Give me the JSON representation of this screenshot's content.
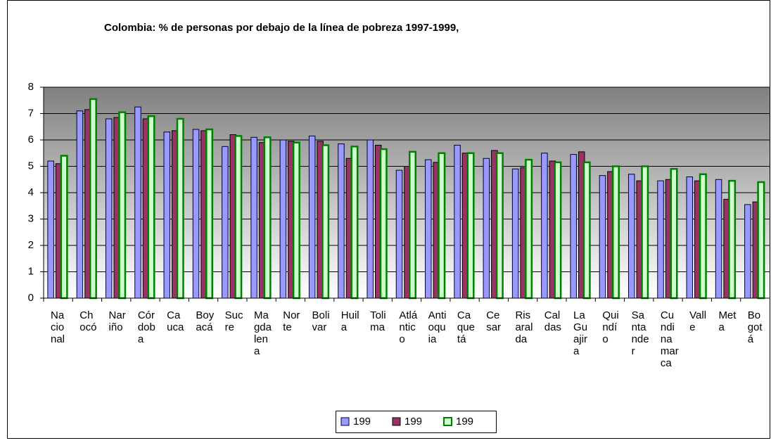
{
  "chart_data": {
    "type": "bar",
    "title": "Colombia: % de personas por debajo de la línea de pobreza 1997-1999,",
    "categories": [
      "Nacional",
      "Chocó",
      "Nariño",
      "Córdoba",
      "Cauca",
      "Boyacá",
      "Sucre",
      "Magdalena",
      "Norte",
      "Bolivar",
      "Huila",
      "Tolima",
      "Atlántico",
      "Antioquia",
      "Caquetá",
      "Cesar",
      "Risaralda",
      "Caldas",
      "La Guajira",
      "Quindío",
      "Santander",
      "Cundinamarca",
      "Valle",
      "Meta",
      "Bogotá"
    ],
    "series": [
      {
        "name": "199",
        "color": "#9999ff",
        "values": [
          5.2,
          7.1,
          6.8,
          7.25,
          6.3,
          6.4,
          5.75,
          6.1,
          6.0,
          6.15,
          5.85,
          6.0,
          4.85,
          5.25,
          5.8,
          5.3,
          4.9,
          5.5,
          5.45,
          4.65,
          4.7,
          4.45,
          4.6,
          4.5,
          3.55
        ]
      },
      {
        "name": "199",
        "color": "#993366",
        "values": [
          5.1,
          7.15,
          6.85,
          6.8,
          6.35,
          6.35,
          6.2,
          5.9,
          5.95,
          5.95,
          5.3,
          5.8,
          5.0,
          5.15,
          5.5,
          5.6,
          4.95,
          5.2,
          5.55,
          4.8,
          4.45,
          4.5,
          4.45,
          3.75,
          3.65
        ]
      },
      {
        "name": "199",
        "color": "#ccffcc",
        "values": [
          5.4,
          7.55,
          7.05,
          6.9,
          6.8,
          6.4,
          6.15,
          6.1,
          5.9,
          5.8,
          5.75,
          5.65,
          5.55,
          5.5,
          5.5,
          5.5,
          5.25,
          5.15,
          5.15,
          5.0,
          5.0,
          4.9,
          4.7,
          4.45,
          4.4
        ]
      }
    ],
    "ylim": [
      0,
      8
    ],
    "yticks": [
      0,
      1,
      2,
      3,
      4,
      5,
      6,
      7,
      8
    ]
  }
}
